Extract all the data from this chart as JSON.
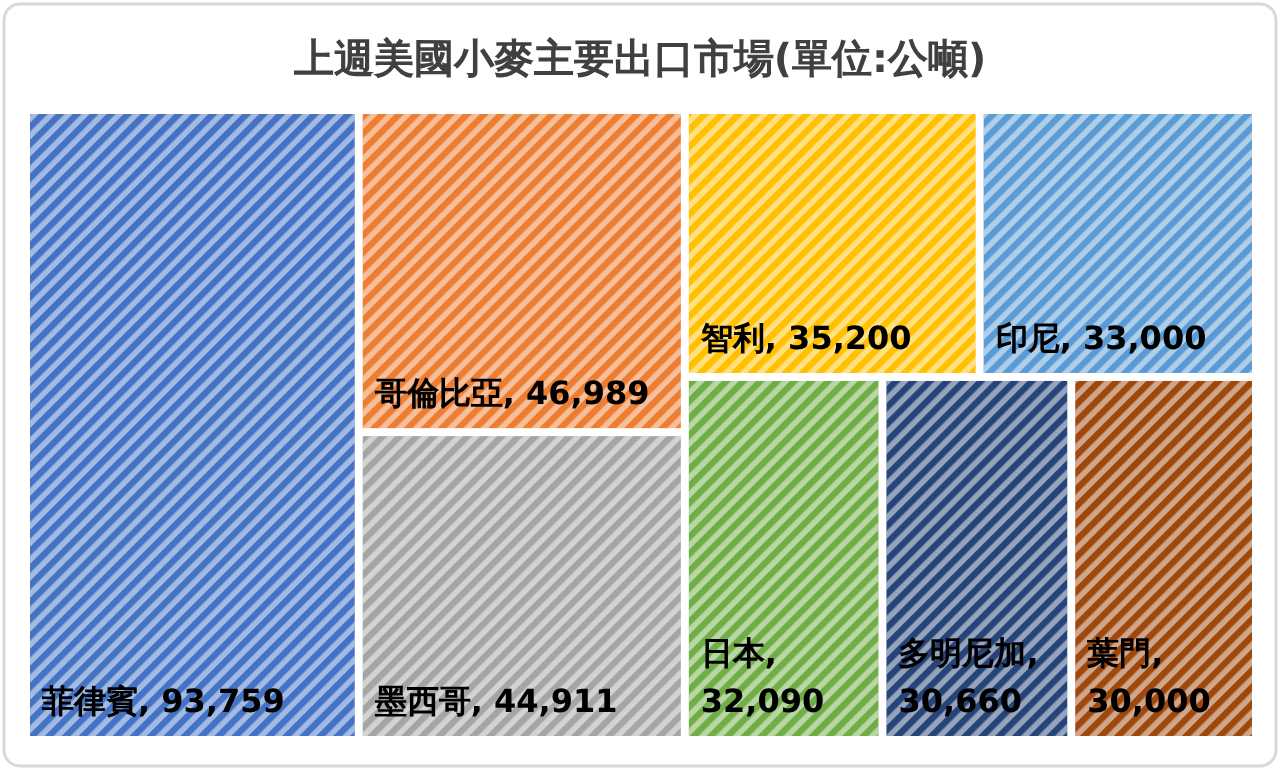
{
  "chart_data": {
    "type": "other",
    "title": "上週美國小麥主要出口市場(單位:公噸)",
    "categories": [
      "菲律賓",
      "哥倫比亞",
      "墨西哥",
      "智利",
      "印尼",
      "日本",
      "多明尼加",
      "葉門"
    ],
    "values": [
      93759,
      46989,
      44911,
      35200,
      33000,
      32090,
      30660,
      30000
    ],
    "colors": [
      "#4472c4",
      "#ed7d31",
      "#a5a5a5",
      "#ffc000",
      "#5b9bd5",
      "#70ad47",
      "#264478",
      "#9e480e"
    ],
    "value_labels": [
      ", 93,759",
      ", 46,989",
      ", 44,911",
      ", 35,200",
      ", 33,000",
      ", 32,090",
      ", 30,660",
      ", 30,000"
    ]
  }
}
